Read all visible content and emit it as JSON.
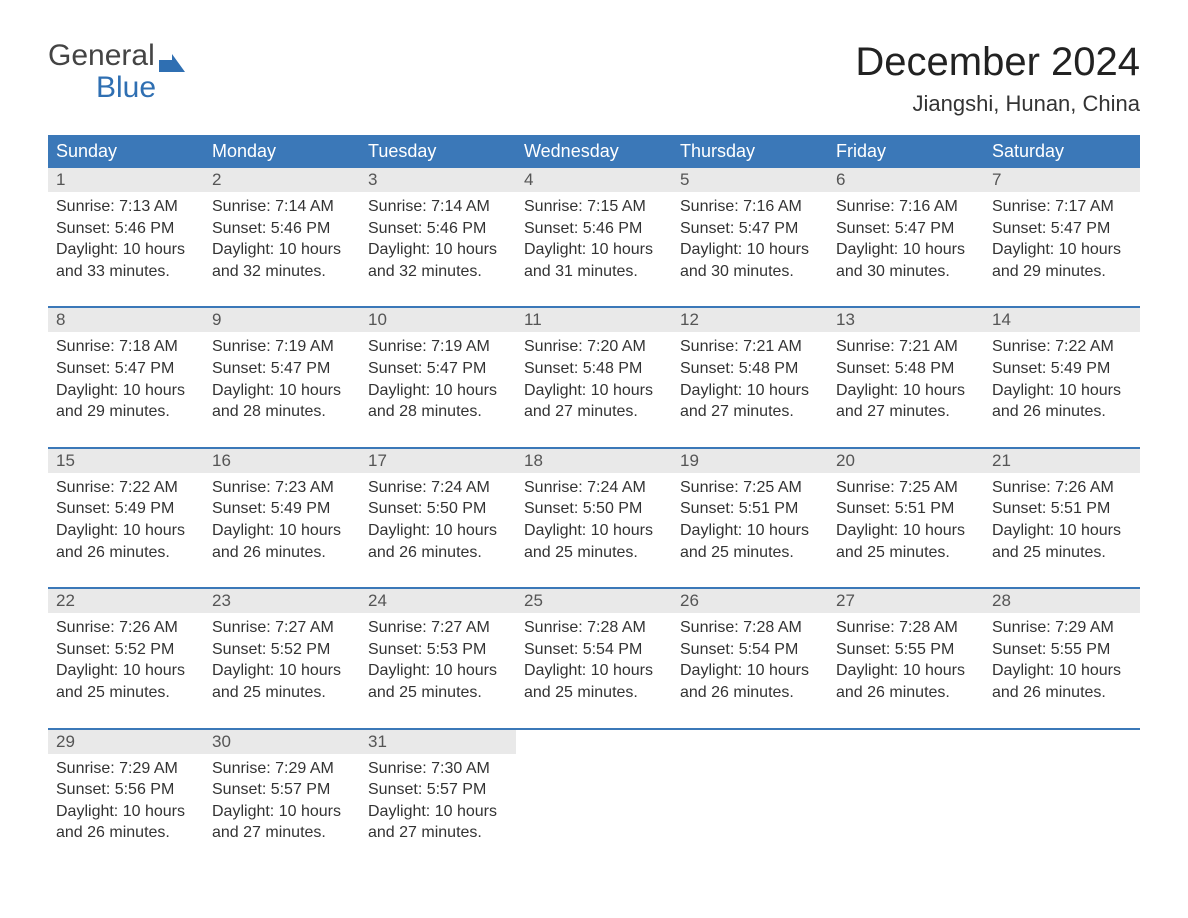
{
  "logo": {
    "line1": "General",
    "line2": "Blue",
    "flag_color": "#2f6fb2"
  },
  "title": "December 2024",
  "subtitle": "Jiangshi, Hunan, China",
  "colors": {
    "header_bg": "#3b78b8",
    "header_text": "#ffffff",
    "daynum_bg": "#e9e9e9",
    "daynum_text": "#555555",
    "body_text": "#333333",
    "rule": "#3b78b8",
    "page_bg": "#ffffff"
  },
  "typography": {
    "title_fontsize": 40,
    "subtitle_fontsize": 22,
    "header_fontsize": 18,
    "daynum_fontsize": 17,
    "detail_fontsize": 16,
    "font_family": "Arial"
  },
  "layout": {
    "columns": 7,
    "rows": 5,
    "aspect_w": 1188,
    "aspect_h": 918
  },
  "weekdays": [
    "Sunday",
    "Monday",
    "Tuesday",
    "Wednesday",
    "Thursday",
    "Friday",
    "Saturday"
  ],
  "weeks": [
    [
      {
        "day": "1",
        "sunrise": "Sunrise: 7:13 AM",
        "sunset": "Sunset: 5:46 PM",
        "dl1": "Daylight: 10 hours",
        "dl2": "and 33 minutes."
      },
      {
        "day": "2",
        "sunrise": "Sunrise: 7:14 AM",
        "sunset": "Sunset: 5:46 PM",
        "dl1": "Daylight: 10 hours",
        "dl2": "and 32 minutes."
      },
      {
        "day": "3",
        "sunrise": "Sunrise: 7:14 AM",
        "sunset": "Sunset: 5:46 PM",
        "dl1": "Daylight: 10 hours",
        "dl2": "and 32 minutes."
      },
      {
        "day": "4",
        "sunrise": "Sunrise: 7:15 AM",
        "sunset": "Sunset: 5:46 PM",
        "dl1": "Daylight: 10 hours",
        "dl2": "and 31 minutes."
      },
      {
        "day": "5",
        "sunrise": "Sunrise: 7:16 AM",
        "sunset": "Sunset: 5:47 PM",
        "dl1": "Daylight: 10 hours",
        "dl2": "and 30 minutes."
      },
      {
        "day": "6",
        "sunrise": "Sunrise: 7:16 AM",
        "sunset": "Sunset: 5:47 PM",
        "dl1": "Daylight: 10 hours",
        "dl2": "and 30 minutes."
      },
      {
        "day": "7",
        "sunrise": "Sunrise: 7:17 AM",
        "sunset": "Sunset: 5:47 PM",
        "dl1": "Daylight: 10 hours",
        "dl2": "and 29 minutes."
      }
    ],
    [
      {
        "day": "8",
        "sunrise": "Sunrise: 7:18 AM",
        "sunset": "Sunset: 5:47 PM",
        "dl1": "Daylight: 10 hours",
        "dl2": "and 29 minutes."
      },
      {
        "day": "9",
        "sunrise": "Sunrise: 7:19 AM",
        "sunset": "Sunset: 5:47 PM",
        "dl1": "Daylight: 10 hours",
        "dl2": "and 28 minutes."
      },
      {
        "day": "10",
        "sunrise": "Sunrise: 7:19 AM",
        "sunset": "Sunset: 5:47 PM",
        "dl1": "Daylight: 10 hours",
        "dl2": "and 28 minutes."
      },
      {
        "day": "11",
        "sunrise": "Sunrise: 7:20 AM",
        "sunset": "Sunset: 5:48 PM",
        "dl1": "Daylight: 10 hours",
        "dl2": "and 27 minutes."
      },
      {
        "day": "12",
        "sunrise": "Sunrise: 7:21 AM",
        "sunset": "Sunset: 5:48 PM",
        "dl1": "Daylight: 10 hours",
        "dl2": "and 27 minutes."
      },
      {
        "day": "13",
        "sunrise": "Sunrise: 7:21 AM",
        "sunset": "Sunset: 5:48 PM",
        "dl1": "Daylight: 10 hours",
        "dl2": "and 27 minutes."
      },
      {
        "day": "14",
        "sunrise": "Sunrise: 7:22 AM",
        "sunset": "Sunset: 5:49 PM",
        "dl1": "Daylight: 10 hours",
        "dl2": "and 26 minutes."
      }
    ],
    [
      {
        "day": "15",
        "sunrise": "Sunrise: 7:22 AM",
        "sunset": "Sunset: 5:49 PM",
        "dl1": "Daylight: 10 hours",
        "dl2": "and 26 minutes."
      },
      {
        "day": "16",
        "sunrise": "Sunrise: 7:23 AM",
        "sunset": "Sunset: 5:49 PM",
        "dl1": "Daylight: 10 hours",
        "dl2": "and 26 minutes."
      },
      {
        "day": "17",
        "sunrise": "Sunrise: 7:24 AM",
        "sunset": "Sunset: 5:50 PM",
        "dl1": "Daylight: 10 hours",
        "dl2": "and 26 minutes."
      },
      {
        "day": "18",
        "sunrise": "Sunrise: 7:24 AM",
        "sunset": "Sunset: 5:50 PM",
        "dl1": "Daylight: 10 hours",
        "dl2": "and 25 minutes."
      },
      {
        "day": "19",
        "sunrise": "Sunrise: 7:25 AM",
        "sunset": "Sunset: 5:51 PM",
        "dl1": "Daylight: 10 hours",
        "dl2": "and 25 minutes."
      },
      {
        "day": "20",
        "sunrise": "Sunrise: 7:25 AM",
        "sunset": "Sunset: 5:51 PM",
        "dl1": "Daylight: 10 hours",
        "dl2": "and 25 minutes."
      },
      {
        "day": "21",
        "sunrise": "Sunrise: 7:26 AM",
        "sunset": "Sunset: 5:51 PM",
        "dl1": "Daylight: 10 hours",
        "dl2": "and 25 minutes."
      }
    ],
    [
      {
        "day": "22",
        "sunrise": "Sunrise: 7:26 AM",
        "sunset": "Sunset: 5:52 PM",
        "dl1": "Daylight: 10 hours",
        "dl2": "and 25 minutes."
      },
      {
        "day": "23",
        "sunrise": "Sunrise: 7:27 AM",
        "sunset": "Sunset: 5:52 PM",
        "dl1": "Daylight: 10 hours",
        "dl2": "and 25 minutes."
      },
      {
        "day": "24",
        "sunrise": "Sunrise: 7:27 AM",
        "sunset": "Sunset: 5:53 PM",
        "dl1": "Daylight: 10 hours",
        "dl2": "and 25 minutes."
      },
      {
        "day": "25",
        "sunrise": "Sunrise: 7:28 AM",
        "sunset": "Sunset: 5:54 PM",
        "dl1": "Daylight: 10 hours",
        "dl2": "and 25 minutes."
      },
      {
        "day": "26",
        "sunrise": "Sunrise: 7:28 AM",
        "sunset": "Sunset: 5:54 PM",
        "dl1": "Daylight: 10 hours",
        "dl2": "and 26 minutes."
      },
      {
        "day": "27",
        "sunrise": "Sunrise: 7:28 AM",
        "sunset": "Sunset: 5:55 PM",
        "dl1": "Daylight: 10 hours",
        "dl2": "and 26 minutes."
      },
      {
        "day": "28",
        "sunrise": "Sunrise: 7:29 AM",
        "sunset": "Sunset: 5:55 PM",
        "dl1": "Daylight: 10 hours",
        "dl2": "and 26 minutes."
      }
    ],
    [
      {
        "day": "29",
        "sunrise": "Sunrise: 7:29 AM",
        "sunset": "Sunset: 5:56 PM",
        "dl1": "Daylight: 10 hours",
        "dl2": "and 26 minutes."
      },
      {
        "day": "30",
        "sunrise": "Sunrise: 7:29 AM",
        "sunset": "Sunset: 5:57 PM",
        "dl1": "Daylight: 10 hours",
        "dl2": "and 27 minutes."
      },
      {
        "day": "31",
        "sunrise": "Sunrise: 7:30 AM",
        "sunset": "Sunset: 5:57 PM",
        "dl1": "Daylight: 10 hours",
        "dl2": "and 27 minutes."
      },
      null,
      null,
      null,
      null
    ]
  ]
}
